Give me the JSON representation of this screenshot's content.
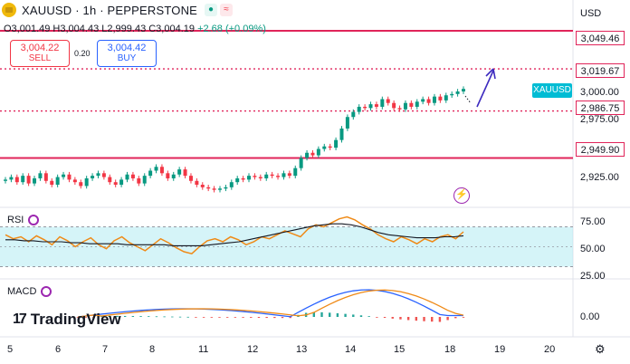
{
  "header": {
    "symbol": "XAUUSD · 1h · PEPPERSTONE",
    "ohlc": "O3,001.49 H3,004.43 L2,999.43 C3,004.19",
    "change": "+2.68 (+0.09%)"
  },
  "trade": {
    "sell_price": "3,004.22",
    "sell_label": "SELL",
    "spread": "0.20",
    "buy_price": "3,004.42",
    "buy_label": "BUY"
  },
  "price_axis": {
    "currency": "USD",
    "levels": [
      "3,049.46",
      "3,019.67",
      "2,986.75",
      "2,949.90"
    ],
    "ticks": [
      "3,000.00",
      "2,975.00",
      "2,925.00"
    ],
    "symbol_tag": "XAUUSD"
  },
  "indicators": {
    "rsi_label": "RSI",
    "rsi_ticks": [
      "75.00",
      "50.00",
      "25.00"
    ],
    "macd_label": "MACD",
    "macd_tick": "0.00"
  },
  "time_axis": [
    "5",
    "6",
    "7",
    "8",
    "11",
    "12",
    "13",
    "14",
    "15",
    "18",
    "19",
    "20"
  ],
  "branding": {
    "name": "TradingView"
  },
  "colors": {
    "up": "#089981",
    "down": "#f23645",
    "level": "#e0245a",
    "arrow": "#3d2bbf",
    "rsi_band": "#b2ebf2"
  },
  "chart_data": {
    "type": "candlestick",
    "y_range": [
      2912,
      3058
    ],
    "horizontal_lines": [
      3049.46,
      3019.67,
      2986.75,
      2949.9
    ],
    "closes": [
      2933,
      2935,
      2931,
      2936,
      2930,
      2934,
      2938,
      2932,
      2929,
      2935,
      2937,
      2933,
      2931,
      2928,
      2934,
      2936,
      2938,
      2935,
      2931,
      2929,
      2933,
      2937,
      2934,
      2930,
      2936,
      2940,
      2943,
      2938,
      2934,
      2937,
      2941,
      2936,
      2932,
      2929,
      2927,
      2926,
      2925,
      2926,
      2927,
      2931,
      2934,
      2933,
      2936,
      2935,
      2934,
      2937,
      2936,
      2935,
      2938,
      2936,
      2942,
      2950,
      2954,
      2952,
      2957,
      2959,
      2958,
      2964,
      2973,
      2982,
      2986,
      2990,
      2989,
      2992,
      2990,
      2996,
      2993,
      2989,
      2988,
      2993,
      2990,
      2994,
      2996,
      2993,
      2998,
      2995,
      2999,
      3000,
      3002,
      3004
    ],
    "rsi": [
      62,
      58,
      60,
      55,
      61,
      57,
      52,
      60,
      56,
      50,
      55,
      59,
      52,
      48,
      56,
      60,
      54,
      50,
      46,
      52,
      58,
      54,
      49,
      45,
      43,
      50,
      56,
      58,
      55,
      60,
      57,
      52,
      55,
      60,
      58,
      62,
      66,
      63,
      60,
      68,
      72,
      70,
      74,
      78,
      80,
      77,
      72,
      68,
      62,
      58,
      55,
      60,
      57,
      53,
      58,
      55,
      60,
      62,
      58,
      65
    ],
    "rsi_ma": [
      57,
      57,
      56,
      56,
      55,
      55,
      55,
      54,
      54,
      53,
      53,
      53,
      53,
      52,
      52,
      52,
      52,
      52,
      51,
      51,
      51,
      51,
      52,
      53,
      54,
      55,
      57,
      59,
      61,
      63,
      65,
      67,
      69,
      71,
      72,
      73,
      73,
      72,
      70,
      67,
      64,
      62,
      61,
      60,
      59,
      59,
      59,
      60,
      60,
      61
    ]
  }
}
